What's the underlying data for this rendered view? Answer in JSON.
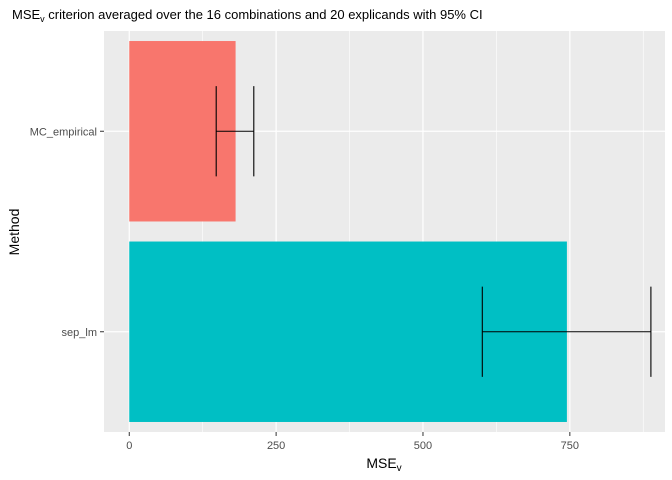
{
  "chart_data": {
    "type": "bar",
    "orientation": "horizontal",
    "title": "MSE",
    "title_subscript": "v",
    "title_rest": " criterion averaged over the 16 combinations and 20 explicands with 95% CI",
    "xlabel": "MSE",
    "xlabel_subscript": "v",
    "ylabel": "Method",
    "xlim": [
      -43,
      912
    ],
    "x_ticks": [
      0,
      250,
      500,
      750
    ],
    "x_tick_labels": [
      "0",
      "250",
      "500",
      "750"
    ],
    "categories": [
      "MC_empirical",
      "sep_lm"
    ],
    "values": [
      181,
      745
    ],
    "ci_lower": [
      148,
      601
    ],
    "ci_upper": [
      212,
      888
    ],
    "bar_colors": [
      "#F8766D",
      "#00BFC4"
    ],
    "grid": true,
    "legend": "none"
  }
}
